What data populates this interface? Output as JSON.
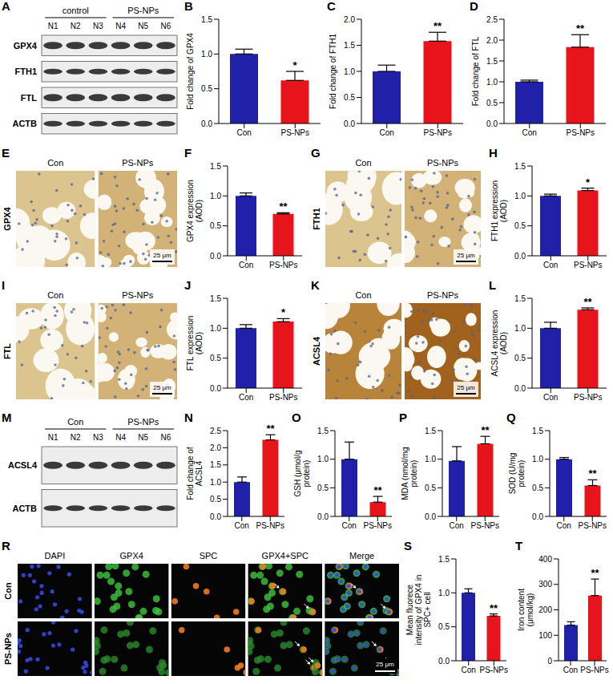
{
  "chart_data": [
    {
      "panel": "B",
      "type": "bar",
      "categories": [
        "Con",
        "PS-NPs"
      ],
      "values": [
        1.0,
        0.62
      ],
      "errors": [
        0.07,
        0.13
      ],
      "colors": [
        "#2020a8",
        "#e8141c"
      ],
      "ylabel": "Fold change of GPX4",
      "ylim": [
        0,
        1.5
      ],
      "yticks": [
        {
          "value": 0,
          "label": "0.0"
        },
        0.5,
        {
          "value": 1,
          "label": "1.0"
        },
        1.5
      ],
      "annotations": [
        {
          "category": "PS-NPs",
          "text": "*"
        }
      ]
    },
    {
      "panel": "C",
      "type": "bar",
      "categories": [
        "Con",
        "PS-NPs"
      ],
      "values": [
        1.0,
        1.58
      ],
      "errors": [
        0.12,
        0.17
      ],
      "colors": [
        "#2020a8",
        "#e8141c"
      ],
      "ylabel": "Fold change of FTH1",
      "ylim": [
        0,
        2
      ],
      "yticks": [
        {
          "value": 0,
          "label": "0.0"
        },
        0.5,
        {
          "value": 1,
          "label": "1.0"
        },
        1.5,
        {
          "value": 2,
          "label": "2.0"
        }
      ],
      "annotations": [
        {
          "category": "PS-NPs",
          "text": "**"
        }
      ]
    },
    {
      "panel": "D",
      "type": "bar",
      "categories": [
        "Con",
        "PS-NPs"
      ],
      "values": [
        1.0,
        1.83
      ],
      "errors": [
        0.04,
        0.3
      ],
      "colors": [
        "#2020a8",
        "#e8141c"
      ],
      "ylabel": "Fold change of FTL",
      "ylim": [
        0,
        2.5
      ],
      "yticks": [
        {
          "value": 0,
          "label": "0.0"
        },
        0.5,
        {
          "value": 1,
          "label": "1.0"
        },
        1.5,
        {
          "value": 2,
          "label": "2.0"
        },
        2.5
      ],
      "annotations": [
        {
          "category": "PS-NPs",
          "text": "**"
        }
      ]
    },
    {
      "panel": "F",
      "type": "bar",
      "categories": [
        "Con",
        "PS-NPs"
      ],
      "values": [
        1.0,
        0.7
      ],
      "errors": [
        0.05,
        0.02
      ],
      "colors": [
        "#2020a8",
        "#e8141c"
      ],
      "ylabel": "GPX4 expression (AOD)",
      "ylim": [
        0,
        1.5
      ],
      "yticks": [
        {
          "value": 0,
          "label": "0.0"
        },
        0.5,
        {
          "value": 1,
          "label": "1.0"
        },
        1.5
      ],
      "annotations": [
        {
          "category": "PS-NPs",
          "text": "**"
        }
      ]
    },
    {
      "panel": "H",
      "type": "bar",
      "categories": [
        "Con",
        "PS-NPs"
      ],
      "values": [
        1.0,
        1.09
      ],
      "errors": [
        0.03,
        0.04
      ],
      "colors": [
        "#2020a8",
        "#e8141c"
      ],
      "ylabel": "FTH1 expression (AOD)",
      "ylim": [
        0,
        1.5
      ],
      "yticks": [
        {
          "value": 0,
          "label": "0.0"
        },
        0.5,
        {
          "value": 1,
          "label": "1.0"
        },
        1.5
      ],
      "annotations": [
        {
          "category": "PS-NPs",
          "text": "*"
        }
      ]
    },
    {
      "panel": "J",
      "type": "bar",
      "categories": [
        "Con",
        "PS-NPs"
      ],
      "values": [
        1.0,
        1.11
      ],
      "errors": [
        0.06,
        0.05
      ],
      "colors": [
        "#2020a8",
        "#e8141c"
      ],
      "ylabel": "FTL expression (AOD)",
      "ylim": [
        0,
        1.5
      ],
      "yticks": [
        {
          "value": 0,
          "label": "0.0"
        },
        0.5,
        {
          "value": 1,
          "label": "1.0"
        },
        1.5
      ],
      "annotations": [
        {
          "category": "PS-NPs",
          "text": "*"
        }
      ]
    },
    {
      "panel": "L",
      "type": "bar",
      "categories": [
        "Con",
        "PS-NPs"
      ],
      "values": [
        1.0,
        1.31
      ],
      "errors": [
        0.1,
        0.03
      ],
      "colors": [
        "#2020a8",
        "#e8141c"
      ],
      "ylabel": "ACSL4 expression (AOD)",
      "ylim": [
        0,
        1.5
      ],
      "yticks": [
        {
          "value": 0,
          "label": "0.0"
        },
        0.5,
        {
          "value": 1,
          "label": "1.0"
        },
        1.5
      ],
      "annotations": [
        {
          "category": "PS-NPs",
          "text": "**"
        }
      ]
    },
    {
      "panel": "N",
      "type": "bar",
      "categories": [
        "Con",
        "PS-NPs"
      ],
      "values": [
        1.0,
        2.23
      ],
      "errors": [
        0.15,
        0.15
      ],
      "colors": [
        "#2020a8",
        "#e8141c"
      ],
      "ylabel": "Fold change of ACSL4",
      "ylim": [
        0,
        2.5
      ],
      "yticks": [
        {
          "value": 0,
          "label": "0.0"
        },
        0.5,
        {
          "value": 1,
          "label": "1.0"
        },
        1.5,
        {
          "value": 2,
          "label": "2.0"
        },
        2.5
      ],
      "annotations": [
        {
          "category": "PS-NPs",
          "text": "**"
        }
      ]
    },
    {
      "panel": "O",
      "type": "bar",
      "categories": [
        "Con",
        "PS-NPs"
      ],
      "values": [
        1.0,
        0.25
      ],
      "errors": [
        0.3,
        0.1
      ],
      "colors": [
        "#2020a8",
        "#e8141c"
      ],
      "ylabel": "GSH (μmol/g protein)",
      "ylim": [
        0,
        1.5
      ],
      "yticks": [
        {
          "value": 0,
          "label": "0.0"
        },
        0.5,
        {
          "value": 1,
          "label": "1.0"
        },
        1.5
      ],
      "annotations": [
        {
          "category": "PS-NPs",
          "text": "**"
        }
      ]
    },
    {
      "panel": "P",
      "type": "bar",
      "categories": [
        "Con",
        "PS-NPs"
      ],
      "values": [
        0.97,
        1.27
      ],
      "errors": [
        0.25,
        0.13
      ],
      "colors": [
        "#2020a8",
        "#e8141c"
      ],
      "ylabel": "MDA (nmol/mg protein)",
      "ylim": [
        0,
        1.5
      ],
      "yticks": [
        {
          "value": 0,
          "label": "0.0"
        },
        0.5,
        {
          "value": 1,
          "label": "1.0"
        },
        1.5
      ],
      "annotations": [
        {
          "category": "PS-NPs",
          "text": "**"
        }
      ]
    },
    {
      "panel": "Q",
      "type": "bar",
      "categories": [
        "Con",
        "PS-NPs"
      ],
      "values": [
        1.0,
        0.54
      ],
      "errors": [
        0.03,
        0.1
      ],
      "colors": [
        "#2020a8",
        "#e8141c"
      ],
      "ylabel": "SOD (U/mg protein)",
      "ylim": [
        0,
        1.5
      ],
      "yticks": [
        {
          "value": 0,
          "label": "0.0"
        },
        0.5,
        {
          "value": 1,
          "label": "1.0"
        },
        1.5
      ],
      "annotations": [
        {
          "category": "PS-NPs",
          "text": "**"
        }
      ]
    },
    {
      "panel": "S",
      "type": "bar",
      "categories": [
        "Con",
        "PS-NPs"
      ],
      "values": [
        1.0,
        0.66
      ],
      "errors": [
        0.06,
        0.03
      ],
      "colors": [
        "#2020a8",
        "#e8141c"
      ],
      "ylabel": "Mean fluorece intensity of GPX4 in SPC+ cell",
      "ylim": [
        0,
        1.5
      ],
      "yticks": [
        {
          "value": 0,
          "label": "0.0"
        },
        0.5,
        {
          "value": 1,
          "label": "1.0"
        },
        1.5
      ],
      "annotations": [
        {
          "category": "PS-NPs",
          "text": "**"
        }
      ]
    },
    {
      "panel": "T",
      "type": "bar",
      "categories": [
        "Con",
        "PS-NPs"
      ],
      "values": [
        140,
        256
      ],
      "errors": [
        13,
        65
      ],
      "colors": [
        "#2020a8",
        "#e8141c"
      ],
      "ylabel": "Iron content (μmol/kg)",
      "ylim": [
        0,
        400
      ],
      "yticks": [
        0,
        100,
        200,
        300,
        400
      ],
      "annotations": [
        {
          "category": "PS-NPs",
          "text": "**"
        }
      ]
    }
  ],
  "blots": [
    {
      "panel": "A",
      "groups": [
        "control",
        "PS-NPs"
      ],
      "lanes": [
        "N1",
        "N2",
        "N3",
        "N4",
        "N5",
        "N6"
      ],
      "rows": [
        "GPX4",
        "FTH1",
        "FTL",
        "ACTB"
      ]
    },
    {
      "panel": "M",
      "groups": [
        "Con",
        "PS-NPs"
      ],
      "lanes": [
        "N1",
        "N2",
        "N3",
        "N4",
        "N5",
        "N6"
      ],
      "rows": [
        "ACSL4",
        "ACTB"
      ]
    }
  ],
  "micrographs": [
    {
      "panel": "E",
      "stain": "GPX4",
      "conditions": [
        "Con",
        "PS-NPs"
      ],
      "scale_bar": "25 μm"
    },
    {
      "panel": "G",
      "stain": "FTH1",
      "conditions": [
        "Con",
        "PS-NPs"
      ],
      "scale_bar": "25 μm"
    },
    {
      "panel": "I",
      "stain": "FTL",
      "conditions": [
        "Con",
        "PS-NPs"
      ],
      "scale_bar": "25 μm"
    },
    {
      "panel": "K",
      "stain": "ACSL4",
      "conditions": [
        "Con",
        "PS-NPs"
      ],
      "scale_bar": "25 μm"
    }
  ],
  "fluorescence": {
    "panel": "R",
    "rows": [
      "Con",
      "PS-NPs"
    ],
    "columns": [
      "DAPI",
      "GPX4",
      "SPC",
      "GPX4+SPC",
      "Merge"
    ],
    "scale_bar": "25 μm"
  }
}
